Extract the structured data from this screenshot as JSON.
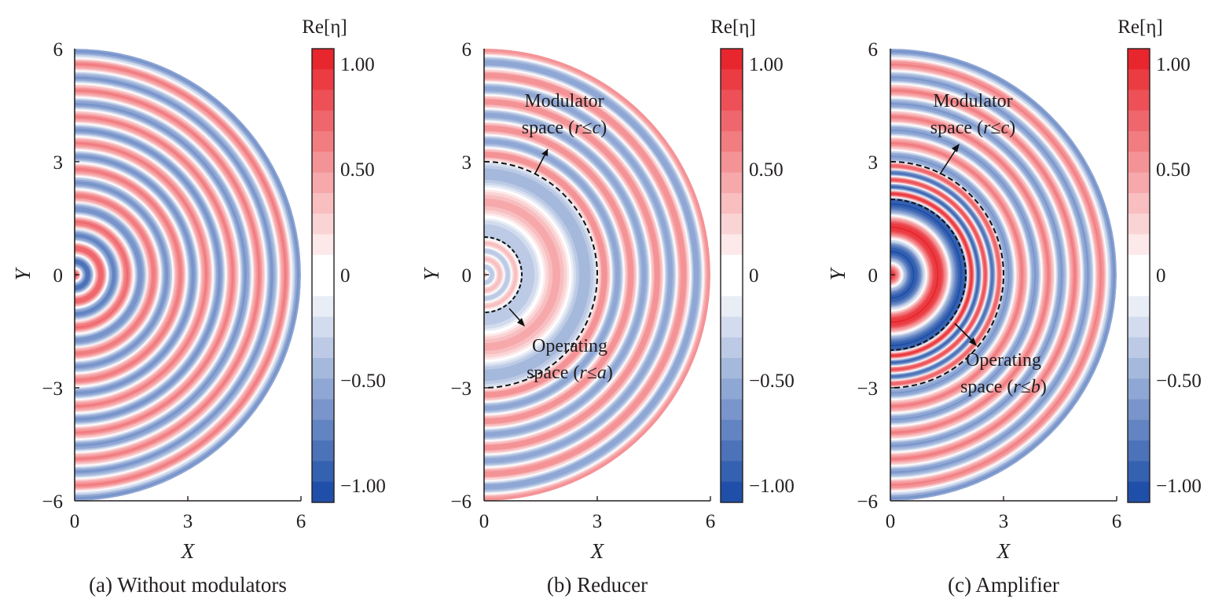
{
  "colors": {
    "positive": "#e8262d",
    "negative": "#1f4fa8",
    "neutral": "#ffffff",
    "axis": "#231f20"
  },
  "chart_data": [
    {
      "type": "heatmap",
      "caption": "(a) Without modulators",
      "xlabel": "X",
      "ylabel": "Y",
      "xlim": [
        0,
        6
      ],
      "ylim": [
        -6,
        6
      ],
      "xticks": [
        "0",
        "3",
        "6"
      ],
      "yticks": [
        "6",
        "3",
        "0",
        "−3",
        "−6"
      ],
      "domain_radius": 6,
      "modulator_radius": null,
      "operating_radius": null,
      "amp_inner": 1.0,
      "amp_outer": 0.62,
      "wavenumber_inner": 9.0,
      "wavenumber_outer": 9.0,
      "wavenumber_middle": 9.0,
      "colorbar": {
        "title": "Re[η]",
        "ticks": [
          "1.00",
          "0.50",
          "0",
          "−0.50",
          "−1.00"
        ],
        "range": [
          -1.1,
          1.1
        ]
      },
      "annotations": []
    },
    {
      "type": "heatmap",
      "caption": "(b) Reducer",
      "xlabel": "X",
      "ylabel": "Y",
      "xlim": [
        0,
        6
      ],
      "ylim": [
        -6,
        6
      ],
      "xticks": [
        "0",
        "3",
        "6"
      ],
      "yticks": [
        "6",
        "3",
        "0",
        "−3",
        "−6"
      ],
      "domain_radius": 6,
      "modulator_radius": 3,
      "operating_radius": 1,
      "amp_inner": 0.35,
      "amp_outer": 0.6,
      "wavenumber_inner": 15.0,
      "wavenumber_middle": 4.2,
      "wavenumber_outer": 9.0,
      "colorbar": {
        "title": "Re[η]",
        "ticks": [
          "1.00",
          "0.50",
          "0",
          "−0.50",
          "−1.00"
        ],
        "range": [
          -1.1,
          1.1
        ]
      },
      "annotations": [
        {
          "line1": "Modulator",
          "line2_prefix": "space (",
          "var": "r",
          "rel": "≤",
          "bound": "c",
          "suffix": ")"
        },
        {
          "line1": "Operating",
          "line2_prefix": "space (",
          "var": "r",
          "rel": "≤",
          "bound": "a",
          "suffix": ")"
        }
      ]
    },
    {
      "type": "heatmap",
      "caption": "(c) Amplifier",
      "xlabel": "X",
      "ylabel": "Y",
      "xlim": [
        0,
        6
      ],
      "ylim": [
        -6,
        6
      ],
      "xticks": [
        "0",
        "3",
        "6"
      ],
      "yticks": [
        "6",
        "3",
        "0",
        "−3",
        "−6"
      ],
      "domain_radius": 6,
      "modulator_radius": 3,
      "operating_radius": 2,
      "amp_inner": 1.05,
      "amp_outer": 0.62,
      "wavenumber_inner": 5.0,
      "wavenumber_middle": 17.0,
      "wavenumber_outer": 9.0,
      "colorbar": {
        "title": "Re[η]",
        "ticks": [
          "1.00",
          "0.50",
          "0",
          "−0.50",
          "−1.00"
        ],
        "range": [
          -1.1,
          1.1
        ]
      },
      "annotations": [
        {
          "line1": "Modulator",
          "line2_prefix": "space (",
          "var": "r",
          "rel": "≤",
          "bound": "c",
          "suffix": ")"
        },
        {
          "line1": "Operating",
          "line2_prefix": "space (",
          "var": "r",
          "rel": "≤",
          "bound": "b",
          "suffix": ")"
        }
      ]
    }
  ]
}
